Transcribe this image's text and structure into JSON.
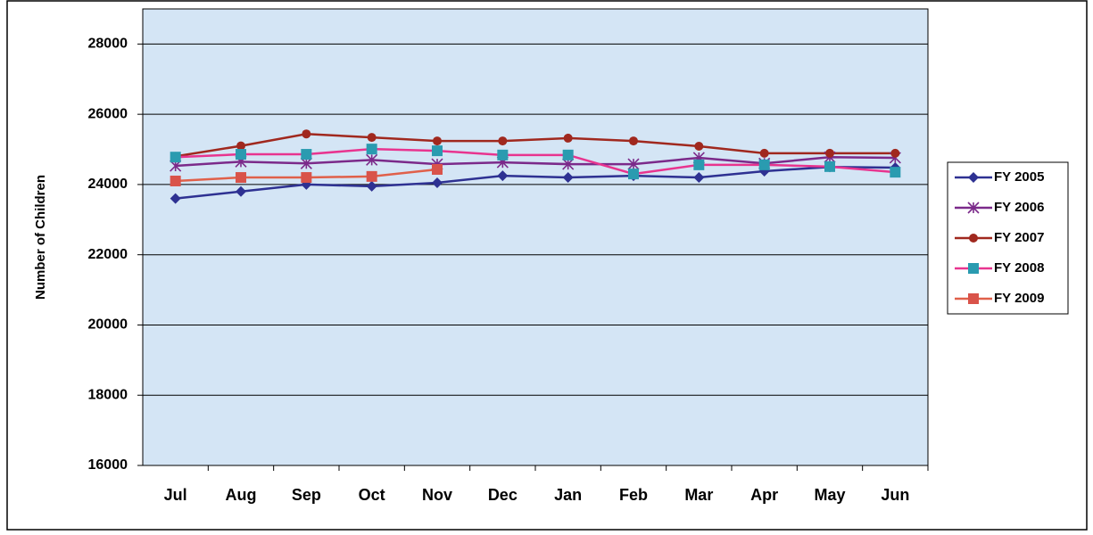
{
  "chart_data": {
    "type": "line",
    "y_label": "Number of Children",
    "categories": [
      "Jul",
      "Aug",
      "Sep",
      "Oct",
      "Nov",
      "Dec",
      "Jan",
      "Feb",
      "Mar",
      "Apr",
      "May",
      "Jun"
    ],
    "ylim": [
      16000,
      29000
    ],
    "yticks": [
      16000,
      18000,
      20000,
      22000,
      24000,
      26000,
      28000
    ],
    "grid": true,
    "legend": "right",
    "series": [
      {
        "name": "FY 2005",
        "color": "#2e3192",
        "marker": "diamond",
        "marker_color": "#2e3192",
        "values": [
          23600,
          23800,
          24000,
          23950,
          24050,
          24250,
          24200,
          24250,
          24200,
          24380,
          24500,
          24480
        ]
      },
      {
        "name": "FY 2006",
        "color": "#7b2a8a",
        "marker": "star",
        "marker_color": "#7b2a8a",
        "values": [
          24530,
          24650,
          24600,
          24700,
          24580,
          24630,
          24580,
          24580,
          24760,
          24600,
          24780,
          24760
        ]
      },
      {
        "name": "FY 2007",
        "color": "#a0281e",
        "marker": "circle",
        "marker_color": "#a0281e",
        "values": [
          24800,
          25100,
          25440,
          25340,
          25240,
          25240,
          25320,
          25240,
          25090,
          24890,
          24890,
          24890
        ]
      },
      {
        "name": "FY 2008",
        "color": "#e8348f",
        "marker": "square",
        "marker_color": "#2a9bb0",
        "values": [
          24780,
          24860,
          24860,
          25010,
          24960,
          24840,
          24840,
          24300,
          24560,
          24560,
          24510,
          24350
        ]
      },
      {
        "name": "FY 2009",
        "color": "#e0604a",
        "marker": "square",
        "marker_color": "#d9534a",
        "values": [
          24100,
          24200,
          24200,
          24230,
          24430,
          null,
          null,
          null,
          null,
          null,
          null,
          null
        ]
      }
    ]
  }
}
